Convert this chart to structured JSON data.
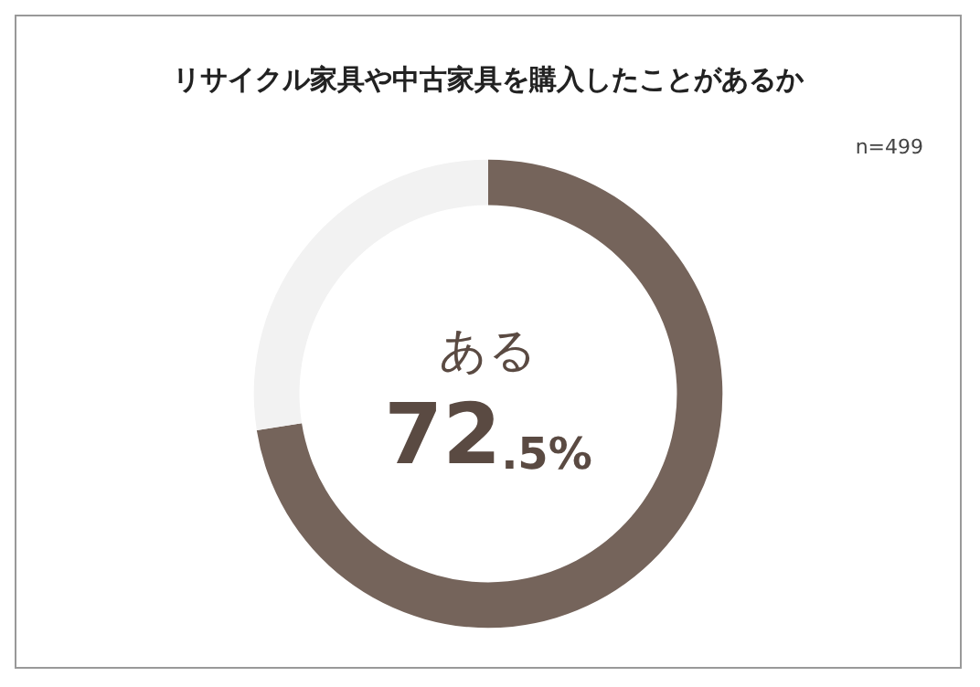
{
  "chart_data": {
    "type": "donut",
    "title": "リサイクル家具や中古家具を購入したことがあるか",
    "annotations": [
      "n=499"
    ],
    "categories": [
      "ある",
      null
    ],
    "values": [
      72.5,
      27.5
    ],
    "colors": [
      "#75645b",
      "#f2f2f2"
    ],
    "value_labels": [
      "72.5%",
      null
    ],
    "legend": false
  }
}
